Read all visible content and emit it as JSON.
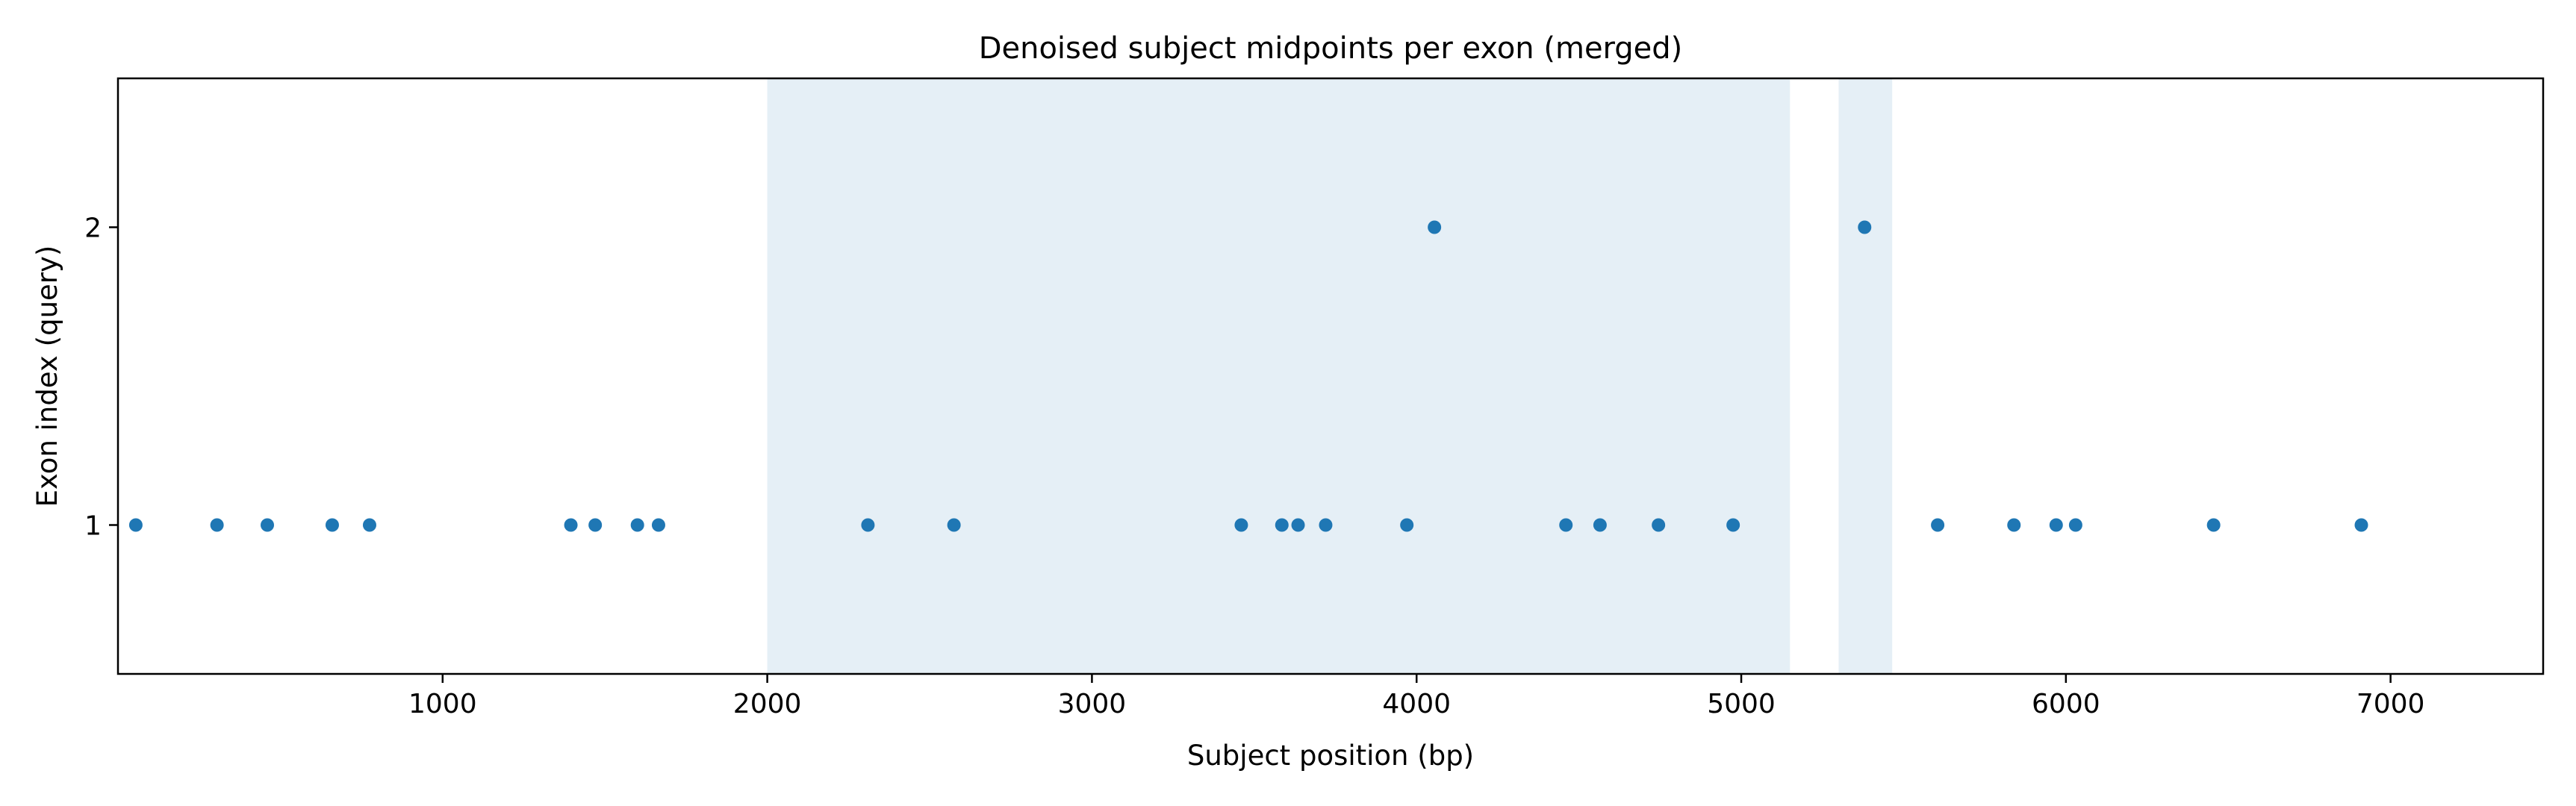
{
  "chart_data": {
    "type": "scatter",
    "title": "Denoised subject midpoints per exon (merged)",
    "xlabel": "Subject position (bp)",
    "ylabel": "Exon index (query)",
    "xlim": [
      0,
      7470
    ],
    "ylim": [
      0.5,
      2.5
    ],
    "xticks": [
      1000,
      2000,
      3000,
      4000,
      5000,
      6000,
      7000
    ],
    "yticks": [
      1,
      2
    ],
    "grid": false,
    "legend": "none",
    "point_color": "#1f77b4",
    "shade_color": "#e5eff6",
    "shaded_regions": [
      {
        "x0": 2000,
        "x1": 5150
      },
      {
        "x0": 5300,
        "x1": 5465
      }
    ],
    "points": [
      {
        "x": 55,
        "y": 1
      },
      {
        "x": 305,
        "y": 1
      },
      {
        "x": 460,
        "y": 1
      },
      {
        "x": 660,
        "y": 1
      },
      {
        "x": 775,
        "y": 1
      },
      {
        "x": 1395,
        "y": 1
      },
      {
        "x": 1470,
        "y": 1
      },
      {
        "x": 1600,
        "y": 1
      },
      {
        "x": 1665,
        "y": 1
      },
      {
        "x": 2310,
        "y": 1
      },
      {
        "x": 2575,
        "y": 1
      },
      {
        "x": 3460,
        "y": 1
      },
      {
        "x": 3585,
        "y": 1
      },
      {
        "x": 3635,
        "y": 1
      },
      {
        "x": 3720,
        "y": 1
      },
      {
        "x": 3970,
        "y": 1
      },
      {
        "x": 4055,
        "y": 2
      },
      {
        "x": 4460,
        "y": 1
      },
      {
        "x": 4565,
        "y": 1
      },
      {
        "x": 4745,
        "y": 1
      },
      {
        "x": 4975,
        "y": 1
      },
      {
        "x": 5380,
        "y": 2
      },
      {
        "x": 5605,
        "y": 1
      },
      {
        "x": 5840,
        "y": 1
      },
      {
        "x": 5970,
        "y": 1
      },
      {
        "x": 6030,
        "y": 1
      },
      {
        "x": 6455,
        "y": 1
      },
      {
        "x": 6910,
        "y": 1
      }
    ]
  }
}
